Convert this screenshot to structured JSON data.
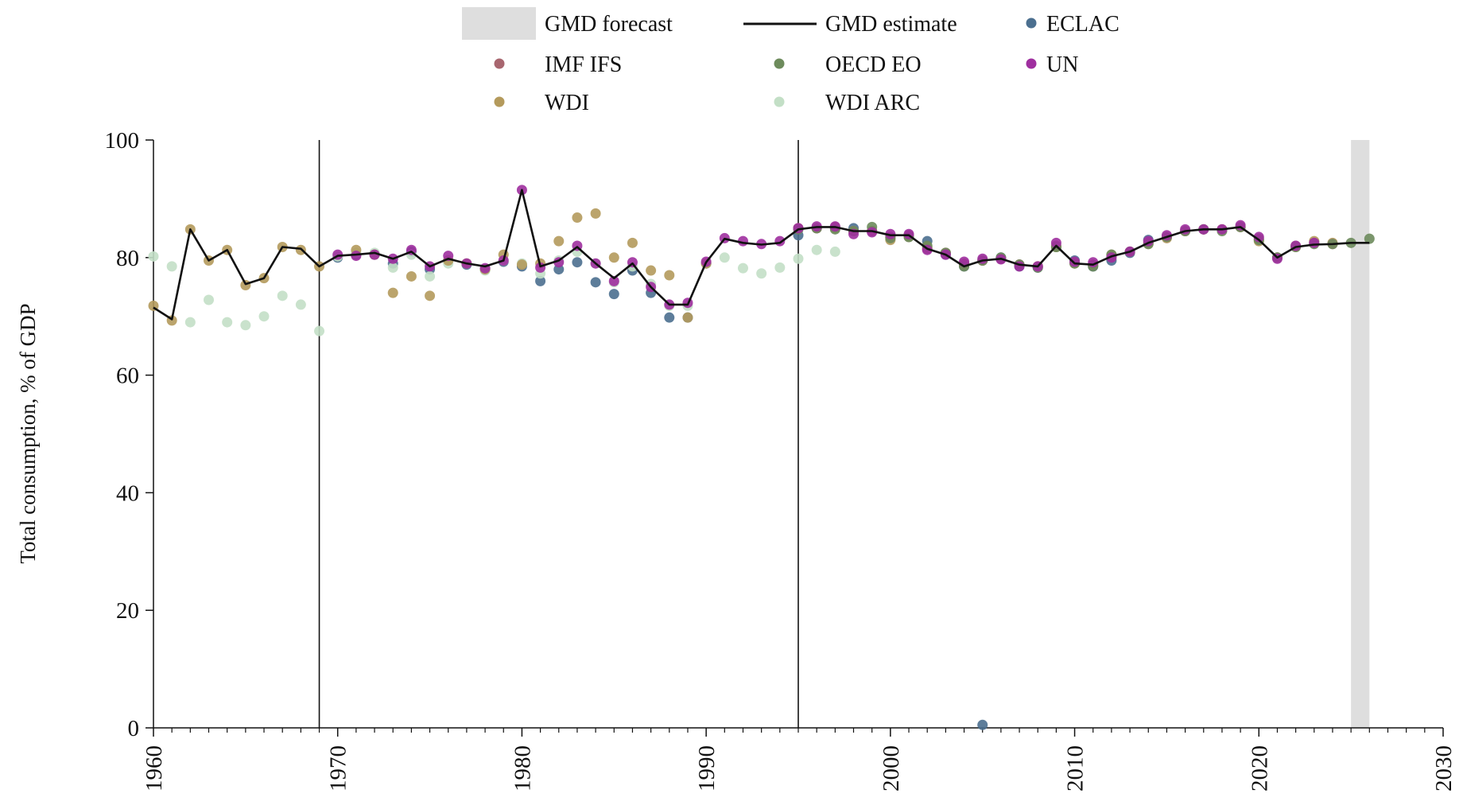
{
  "chart_data": {
    "type": "scatter",
    "ylabel": "Total consumption, % of GDP",
    "xlim": [
      1960,
      2030
    ],
    "ylim": [
      0,
      100
    ],
    "x_ticks": [
      "1960",
      "1970",
      "1980",
      "1990",
      "2000",
      "2010",
      "2020",
      "2030"
    ],
    "y_ticks": [
      "0",
      "20",
      "40",
      "60",
      "80",
      "100"
    ],
    "vertical_lines": [
      1969,
      1995
    ],
    "forecast_band": [
      2025,
      2026
    ],
    "grid": false,
    "legend": {
      "placement": "top-center",
      "entries": [
        {
          "key": "forecast",
          "label": "GMD forecast",
          "kind": "band",
          "color": "#dedede"
        },
        {
          "key": "estimate",
          "label": "GMD estimate",
          "kind": "line",
          "color": "#111111"
        },
        {
          "key": "eclac",
          "label": "ECLAC",
          "kind": "dot",
          "color": "#4b6f8f"
        },
        {
          "key": "imf",
          "label": "IMF IFS",
          "kind": "dot",
          "color": "#a8666f"
        },
        {
          "key": "oecd",
          "label": "OECD EO",
          "kind": "dot",
          "color": "#6d8b5c"
        },
        {
          "key": "un",
          "label": "UN",
          "kind": "dot",
          "color": "#9f2f9f"
        },
        {
          "key": "wdi",
          "label": "WDI",
          "kind": "dot",
          "color": "#b49a5c"
        },
        {
          "key": "wdiarc",
          "label": "WDI ARC",
          "kind": "dot",
          "color": "#c3dfc6"
        }
      ]
    },
    "gmd_estimate": {
      "x": [
        1960,
        1961,
        1962,
        1963,
        1964,
        1965,
        1966,
        1967,
        1968,
        1969,
        1970,
        1971,
        1972,
        1973,
        1974,
        1975,
        1976,
        1977,
        1978,
        1979,
        1980,
        1981,
        1982,
        1983,
        1984,
        1985,
        1986,
        1987,
        1988,
        1989,
        1990,
        1991,
        1992,
        1993,
        1994,
        1995,
        1996,
        1997,
        1998,
        1999,
        2000,
        2001,
        2002,
        2003,
        2004,
        2005,
        2006,
        2007,
        2008,
        2009,
        2010,
        2011,
        2012,
        2013,
        2014,
        2015,
        2016,
        2017,
        2018,
        2019,
        2020,
        2021,
        2022,
        2023,
        2024,
        2025,
        2026
      ],
      "y": [
        71.5,
        69.5,
        84.8,
        79.5,
        81.3,
        75.5,
        76.5,
        81.8,
        81.5,
        78.5,
        80.3,
        80.5,
        80.8,
        79.8,
        81.0,
        78.5,
        79.8,
        79.0,
        78.5,
        79.5,
        91.5,
        78.5,
        79.5,
        81.8,
        79.0,
        76.5,
        79.0,
        75.0,
        72.0,
        72.0,
        79.2,
        83.2,
        82.5,
        82.2,
        82.5,
        84.8,
        85.2,
        85.2,
        84.5,
        84.5,
        83.8,
        83.8,
        81.5,
        80.5,
        78.5,
        79.5,
        79.8,
        78.8,
        78.5,
        82.0,
        79.0,
        78.8,
        80.2,
        81.0,
        82.5,
        83.5,
        84.5,
        84.8,
        84.8,
        85.2,
        83.0,
        80.0,
        81.8,
        82.2,
        82.3,
        82.5,
        82.5
      ]
    },
    "series": [
      {
        "key": "eclac",
        "name": "ECLAC",
        "color": "#4b6f8f",
        "x": [
          1970,
          1971,
          1972,
          1973,
          1974,
          1975,
          1976,
          1977,
          1978,
          1979,
          1980,
          1981,
          1982,
          1983,
          1984,
          1985,
          1986,
          1987,
          1988,
          1989,
          1990,
          1995,
          1996,
          1997,
          1998,
          1999,
          2000,
          2001,
          2002,
          2003,
          2004,
          2005,
          2006,
          2007,
          2008,
          2009,
          2010,
          2011,
          2012,
          2013,
          2014
        ],
        "y": [
          80.0,
          80.5,
          80.5,
          79.0,
          81.0,
          78.0,
          79.5,
          78.8,
          78.0,
          79.3,
          78.5,
          76.0,
          78.0,
          79.2,
          75.8,
          73.8,
          77.8,
          74.0,
          69.8,
          69.8,
          79.0,
          83.8,
          85.0,
          85.0,
          85.0,
          84.5,
          83.5,
          83.5,
          82.8,
          80.5,
          78.5,
          0.5,
          80.0,
          78.5,
          78.3,
          81.8,
          79.5,
          78.5,
          79.5,
          80.8,
          83.0
        ]
      },
      {
        "key": "wdiarc",
        "name": "WDI ARC",
        "color": "#c3dfc6",
        "x": [
          1960,
          1961,
          1962,
          1963,
          1964,
          1965,
          1966,
          1967,
          1968,
          1969,
          1970,
          1971,
          1972,
          1973,
          1974,
          1975,
          1976,
          1977,
          1978,
          1979,
          1980,
          1981,
          1982,
          1983,
          1984,
          1985,
          1986,
          1987,
          1988,
          1989,
          1990,
          1991,
          1992,
          1993,
          1994,
          1995,
          1996,
          1997
        ],
        "y": [
          80.2,
          78.5,
          69.0,
          72.8,
          69.0,
          68.5,
          70.0,
          73.5,
          72.0,
          67.5,
          80.2,
          80.8,
          80.8,
          78.3,
          80.5,
          76.8,
          79.0,
          79.0,
          77.8,
          79.5,
          79.0,
          77.3,
          79.5,
          81.0,
          79.0,
          75.8,
          78.5,
          75.5,
          71.8,
          71.8,
          79.0,
          80.0,
          78.2,
          77.3,
          78.3,
          79.8,
          81.3,
          81.0
        ]
      },
      {
        "key": "wdi",
        "name": "WDI",
        "color": "#b49a5c",
        "x": [
          1960,
          1961,
          1962,
          1963,
          1964,
          1965,
          1966,
          1967,
          1968,
          1969,
          1971,
          1972,
          1973,
          1974,
          1975,
          1976,
          1977,
          1978,
          1979,
          1980,
          1981,
          1982,
          1983,
          1984,
          1985,
          1986,
          1987,
          1988,
          1989,
          1990,
          1995,
          1996,
          1997,
          1998,
          1999,
          2000,
          2001,
          2002,
          2003,
          2004,
          2005,
          2006,
          2007,
          2008,
          2009,
          2010,
          2011,
          2012,
          2013,
          2014,
          2015,
          2016,
          2017,
          2018,
          2019,
          2020,
          2021,
          2022,
          2023,
          2024
        ],
        "y": [
          71.8,
          69.3,
          84.8,
          79.5,
          81.3,
          75.3,
          76.5,
          81.8,
          81.3,
          78.5,
          81.3,
          80.5,
          74.0,
          76.8,
          73.5,
          79.5,
          79.0,
          78.0,
          80.5,
          78.8,
          79.0,
          82.8,
          86.8,
          87.5,
          80.0,
          82.5,
          77.8,
          77.0,
          69.8,
          79.0,
          85.0,
          85.0,
          85.0,
          84.5,
          84.5,
          83.0,
          83.5,
          81.8,
          80.8,
          78.8,
          79.5,
          79.8,
          78.8,
          78.5,
          81.8,
          79.0,
          78.8,
          80.5,
          81.0,
          82.3,
          83.3,
          84.5,
          84.8,
          84.8,
          85.2,
          82.8,
          80.0,
          81.8,
          82.8,
          82.5
        ]
      },
      {
        "key": "imf",
        "name": "IMF IFS",
        "color": "#a8666f",
        "x": [
          1995,
          1996,
          1997,
          1998,
          1999,
          2000,
          2001,
          2002,
          2003,
          2004,
          2005,
          2006,
          2007,
          2008,
          2009,
          2010,
          2011,
          2012,
          2013,
          2014,
          2015,
          2016,
          2017,
          2018,
          2019,
          2020,
          2021,
          2022,
          2023,
          2024
        ],
        "y": [
          85.0,
          85.0,
          85.2,
          84.5,
          84.5,
          83.5,
          83.8,
          81.5,
          80.8,
          79.0,
          79.5,
          79.8,
          78.8,
          78.5,
          82.0,
          79.2,
          78.8,
          80.2,
          81.0,
          82.5,
          83.5,
          84.5,
          84.8,
          84.8,
          85.2,
          83.2,
          80.0,
          82.0,
          82.5,
          82.3
        ]
      },
      {
        "key": "oecd",
        "name": "OECD EO",
        "color": "#6d8b5c",
        "x": [
          1995,
          1996,
          1997,
          1998,
          1999,
          2000,
          2001,
          2002,
          2003,
          2004,
          2005,
          2006,
          2007,
          2008,
          2009,
          2010,
          2011,
          2012,
          2013,
          2014,
          2015,
          2016,
          2017,
          2018,
          2019,
          2020,
          2021,
          2022,
          2023,
          2024,
          2025,
          2026
        ],
        "y": [
          84.8,
          85.0,
          84.8,
          84.5,
          85.2,
          83.3,
          83.5,
          82.0,
          80.8,
          78.5,
          79.5,
          80.0,
          78.8,
          78.3,
          81.8,
          79.0,
          78.5,
          80.5,
          81.0,
          82.3,
          83.5,
          84.5,
          84.8,
          84.5,
          85.2,
          83.0,
          80.0,
          81.8,
          82.3,
          82.3,
          82.5,
          83.2
        ]
      },
      {
        "key": "un",
        "name": "UN",
        "color": "#9f2f9f",
        "x": [
          1970,
          1971,
          1972,
          1973,
          1974,
          1975,
          1976,
          1977,
          1978,
          1979,
          1980,
          1981,
          1982,
          1983,
          1984,
          1985,
          1986,
          1987,
          1988,
          1989,
          1990,
          1991,
          1992,
          1993,
          1994,
          1995,
          1996,
          1997,
          1998,
          1999,
          2000,
          2001,
          2002,
          2003,
          2004,
          2005,
          2006,
          2007,
          2008,
          2009,
          2010,
          2011,
          2012,
          2013,
          2014,
          2015,
          2016,
          2017,
          2018,
          2019,
          2020,
          2021,
          2022,
          2023
        ],
        "y": [
          80.5,
          80.3,
          80.5,
          79.8,
          81.3,
          78.5,
          80.3,
          79.0,
          78.2,
          79.5,
          91.5,
          78.3,
          79.2,
          82.0,
          79.0,
          76.0,
          79.2,
          75.0,
          72.0,
          72.3,
          79.3,
          83.3,
          82.8,
          82.3,
          82.8,
          85.0,
          85.3,
          85.3,
          84.0,
          84.3,
          84.0,
          84.0,
          81.3,
          80.5,
          79.3,
          79.8,
          79.7,
          78.5,
          78.5,
          82.5,
          79.3,
          79.2,
          80.0,
          81.0,
          82.8,
          83.8,
          84.8,
          84.8,
          84.8,
          85.5,
          83.5,
          79.8,
          82.0,
          82.5
        ]
      }
    ]
  }
}
